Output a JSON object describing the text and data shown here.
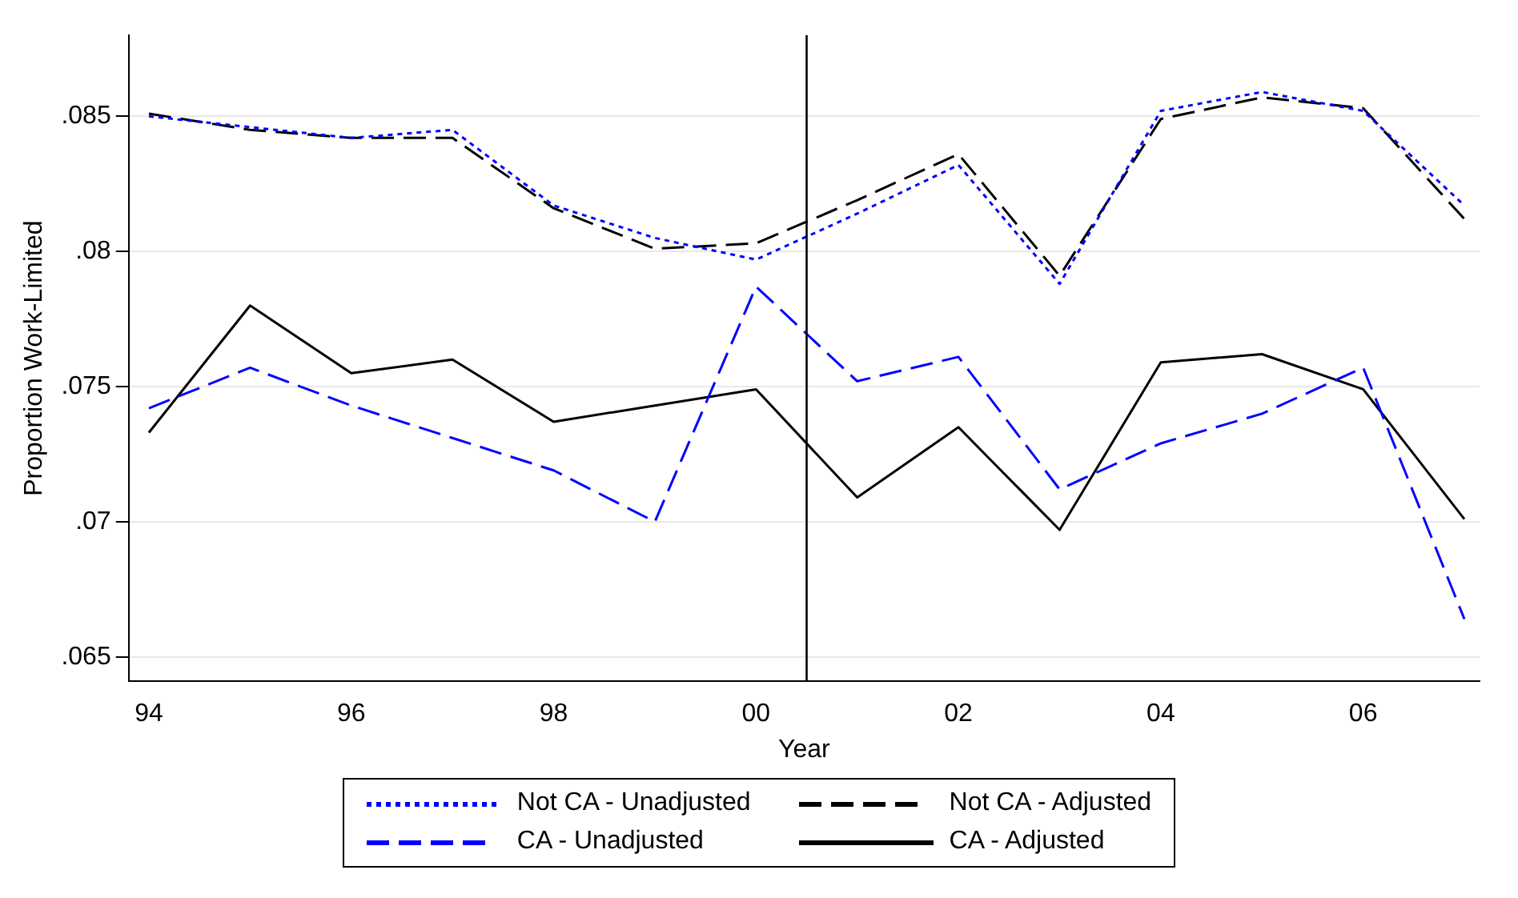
{
  "chart_data": {
    "type": "line",
    "xlabel": "Year",
    "ylabel": "Proportion Work-Limited",
    "x": [
      1994,
      1995,
      1996,
      1997,
      1998,
      1999,
      2000,
      2001,
      2002,
      2003,
      2004,
      2005,
      2006,
      2007
    ],
    "xlim": [
      1993.8,
      2007.15
    ],
    "xticks": [
      {
        "value": 1994,
        "label": "94"
      },
      {
        "value": 1996,
        "label": "96"
      },
      {
        "value": 1998,
        "label": "98"
      },
      {
        "value": 2000,
        "label": "00"
      },
      {
        "value": 2002,
        "label": "02"
      },
      {
        "value": 2004,
        "label": "04"
      },
      {
        "value": 2006,
        "label": "06"
      }
    ],
    "ylim": [
      0.0641,
      0.088
    ],
    "yticks": [
      {
        "value": 0.065,
        "label": ".065"
      },
      {
        "value": 0.07,
        "label": ".07"
      },
      {
        "value": 0.075,
        "label": ".075"
      },
      {
        "value": 0.08,
        "label": ".08"
      },
      {
        "value": 0.085,
        "label": ".085"
      }
    ],
    "grid": "y",
    "legend": "bottom",
    "marker": "none",
    "ref_lines": [
      {
        "axis": "x",
        "value": 2000.5,
        "color": "#000000"
      }
    ],
    "series": [
      {
        "name": "Not CA - Unadjusted",
        "color": "#0000ff",
        "line_style": "dotted",
        "values": [
          0.085,
          0.0846,
          0.0842,
          0.0845,
          0.0817,
          0.0805,
          0.0797,
          0.0814,
          0.0832,
          0.0788,
          0.0852,
          0.0859,
          0.0852,
          0.0817
        ]
      },
      {
        "name": "Not CA - Adjusted",
        "color": "#000000",
        "line_style": "dashed",
        "values": [
          0.0851,
          0.0845,
          0.0842,
          0.0842,
          0.0816,
          0.0801,
          0.0803,
          0.0819,
          0.0836,
          0.0791,
          0.0849,
          0.0857,
          0.0853,
          0.0812
        ]
      },
      {
        "name": "CA - Unadjusted",
        "color": "#0000ff",
        "line_style": "dashed",
        "values": [
          0.0742,
          0.0757,
          0.0743,
          0.0731,
          0.0719,
          0.07,
          0.0787,
          0.0752,
          0.0761,
          0.0712,
          0.0729,
          0.074,
          0.0757,
          0.0664
        ]
      },
      {
        "name": "CA - Adjusted",
        "color": "#000000",
        "line_style": "solid",
        "values": [
          0.0733,
          0.078,
          0.0755,
          0.076,
          0.0737,
          0.0743,
          0.0749,
          0.0709,
          0.0735,
          0.0697,
          0.0759,
          0.0762,
          0.0749,
          0.0701
        ]
      }
    ]
  }
}
